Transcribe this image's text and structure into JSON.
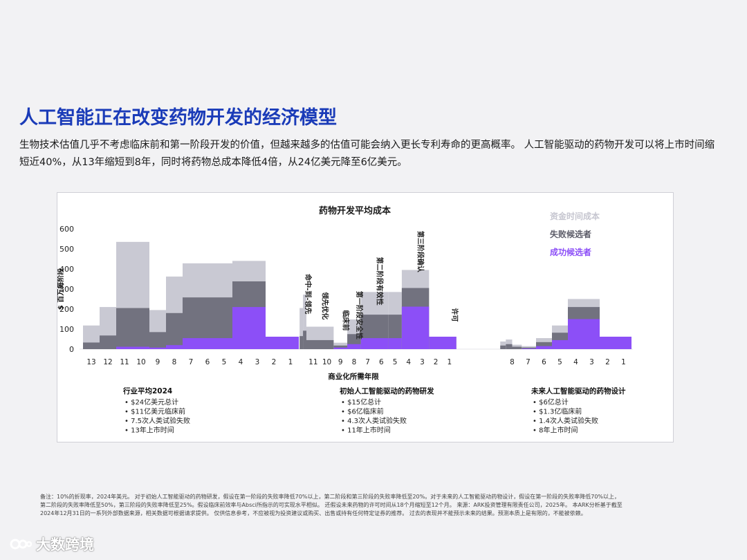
{
  "page": {
    "title": "人工智能正在改变药物开发的经济模型",
    "subtitle": "生物技术估值几乎不考虑临床前和第一阶段开发的价值，但越来越多的估值可能会纳入更长专利寿命的更高概率。 人工智能驱动的药物开发可以将上市时间缩短近40%，从13年缩短到8年，同时将药物总成本降低4倍，从24亿美元降至6亿美元。",
    "footnote_line1": "备注：10%的折现率，2024年美元。 对于初始人工智能驱动的药物研发，假设在第一阶段的失败率降低70%以上，第二阶段和第三阶段的失败率降低至20%。对于未来的人工智能驱动药物设计，假设在第一阶段的失败率降低70%以上，",
    "footnote_line2": "第二阶段的失败率降低至50%，第三阶段的失败率降低至25%。假设临床前效率与Absci所指示的可实现水平相似。 还假设未来药物的许可时间从18个月缩短至12个月。 来源：ARK投资管理有限责任公司，2025年。 本ARK分析基于截至",
    "footnote_line3": "2024年12月31日的一系列外部数据来源，相关数据可根据请求提供。 仅供信息参考，不应被视为投资建议或购买、出售或持有任何特定证券的推荐。 过去的表现并不能预示未来的结果。预测本质上是有限的，不能被依赖。",
    "watermark": "大数跨境"
  },
  "chart_data": {
    "type": "bar",
    "stacked": true,
    "title": "药物开发平均成本",
    "ylabel": "$ 百万每阶段",
    "xlabel": "商业化所需年限",
    "ylim": [
      0,
      600
    ],
    "yticks": [
      0,
      100,
      200,
      300,
      400,
      500,
      600
    ],
    "legend_position": "top-right",
    "series": [
      {
        "key": "capital",
        "name": "资金时间成本",
        "color": "#c9c9d3"
      },
      {
        "key": "failure",
        "name": "失败候选者",
        "color": "#72727f"
      },
      {
        "key": "success",
        "name": "成功候选者",
        "color": "#8c4ff7"
      }
    ],
    "groups": [
      {
        "id": "industry",
        "x_ticks": [
          "13",
          "12",
          "11",
          "10",
          "9",
          "8",
          "7",
          "6",
          "5",
          "4",
          "3",
          "2",
          "1"
        ],
        "segments": [
          {
            "from": 13.5,
            "to": 12.5,
            "capital": 118,
            "failure": 33,
            "success": 0
          },
          {
            "from": 12.5,
            "to": 11.5,
            "capital": 210,
            "failure": 68,
            "success": 0
          },
          {
            "from": 11.5,
            "to": 9.5,
            "capital": 535,
            "failure": 205,
            "success": 12
          },
          {
            "from": 9.5,
            "to": 8.5,
            "capital": 195,
            "failure": 85,
            "success": 8
          },
          {
            "from": 8.5,
            "to": 7.5,
            "capital": 362,
            "failure": 180,
            "success": 20
          },
          {
            "from": 7.5,
            "to": 5.5,
            "capital": 428,
            "failure": 258,
            "success": 55
          },
          {
            "from": 5.5,
            "to": 4.5,
            "capital": 428,
            "failure": 258,
            "success": 55
          },
          {
            "from": 4.5,
            "to": 2.5,
            "capital": 440,
            "failure": 338,
            "success": 210
          },
          {
            "from": 2.5,
            "to": 1.5,
            "capital": 62,
            "failure": 62,
            "success": 62
          },
          {
            "from": 1.5,
            "to": 0.5,
            "capital": 62,
            "failure": 62,
            "success": 62
          }
        ],
        "summary": {
          "title": "行业平均2024",
          "bullets": [
            "$24亿美元总计",
            "$11亿美元临床前",
            "7.5次人类试验失败",
            "13年上市时间"
          ]
        }
      },
      {
        "id": "initial_ai",
        "x_ticks": [
          "11",
          "10",
          "9",
          "8",
          "7",
          "6",
          "5",
          "4",
          "3",
          "2",
          "1"
        ],
        "segments": [
          {
            "from": 12.0,
            "to": 11.75,
            "capital": 205,
            "failure": 65,
            "success": 0
          },
          {
            "from": 11.75,
            "to": 11.5,
            "capital": 272,
            "failure": 92,
            "success": 0
          },
          {
            "from": 11.5,
            "to": 9.5,
            "capital": 112,
            "failure": 45,
            "success": 0
          },
          {
            "from": 9.5,
            "to": 8.5,
            "capital": 32,
            "failure": 18,
            "success": 8
          },
          {
            "from": 8.5,
            "to": 7.5,
            "capital": 148,
            "failure": 75,
            "success": 25
          },
          {
            "from": 7.5,
            "to": 5.5,
            "capital": 285,
            "failure": 172,
            "success": 55
          },
          {
            "from": 5.5,
            "to": 4.5,
            "capital": 285,
            "failure": 172,
            "success": 55
          },
          {
            "from": 4.5,
            "to": 2.5,
            "capital": 395,
            "failure": 305,
            "success": 212
          },
          {
            "from": 2.5,
            "to": 1.5,
            "capital": 62,
            "failure": 62,
            "success": 62
          },
          {
            "from": 1.5,
            "to": 0.5,
            "capital": 62,
            "failure": 62,
            "success": 62
          }
        ],
        "stage_labels": [
          {
            "text": "命中-到-领先",
            "x": 11.75,
            "value": 375
          },
          {
            "text": "领先优化",
            "x": 10.5,
            "value": 285
          },
          {
            "text": "临床前",
            "x": 9.0,
            "value": 195
          },
          {
            "text": "第一阶段安全性",
            "x": 8.0,
            "value": 290
          },
          {
            "text": "第二阶段有效性",
            "x": 6.5,
            "value": 460
          },
          {
            "text": "第三阶段确认",
            "x": 3.5,
            "value": 590
          },
          {
            "text": "许可",
            "x": 1.0,
            "value": 205
          }
        ],
        "summary": {
          "title": "初始人工智能驱动的药物研发",
          "bullets": [
            "$15亿总计",
            "$6亿临床前",
            "4.3次人类试验失败",
            "11年上市时间"
          ]
        }
      },
      {
        "id": "future_ai",
        "x_ticks": [
          "8",
          "7",
          "6",
          "5",
          "4",
          "3",
          "2",
          "1"
        ],
        "segments": [
          {
            "from": 8.75,
            "to": 8.4,
            "capital": 38,
            "failure": 18,
            "success": 0
          },
          {
            "from": 8.4,
            "to": 8.0,
            "capital": 48,
            "failure": 25,
            "success": 0
          },
          {
            "from": 8.0,
            "to": 7.4,
            "capital": 22,
            "failure": 12,
            "success": 0
          },
          {
            "from": 7.4,
            "to": 6.5,
            "capital": 15,
            "failure": 8,
            "success": 3
          },
          {
            "from": 6.5,
            "to": 5.5,
            "capital": 55,
            "failure": 35,
            "success": 15
          },
          {
            "from": 5.5,
            "to": 4.5,
            "capital": 118,
            "failure": 82,
            "success": 45
          },
          {
            "from": 4.5,
            "to": 2.5,
            "capital": 250,
            "failure": 210,
            "success": 150
          },
          {
            "from": 2.5,
            "to": 1.5,
            "capital": 62,
            "failure": 62,
            "success": 62
          },
          {
            "from": 1.5,
            "to": 0.5,
            "capital": 62,
            "failure": 62,
            "success": 62
          }
        ],
        "summary": {
          "title": "未来人工智能驱动的药物设计",
          "bullets": [
            "$6亿总计",
            "$1.3亿临床前",
            "1.4次人类试验失败",
            "8年上市时间"
          ]
        }
      }
    ]
  }
}
